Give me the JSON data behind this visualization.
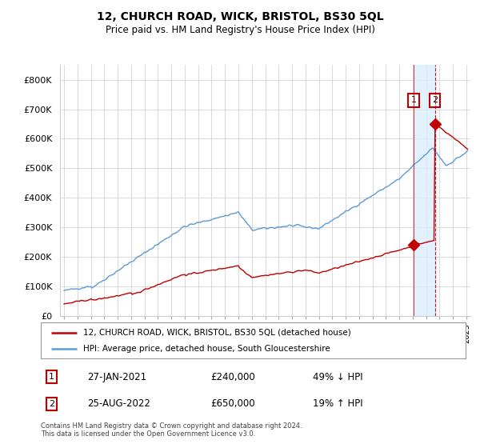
{
  "title": "12, CHURCH ROAD, WICK, BRISTOL, BS30 5QL",
  "subtitle": "Price paid vs. HM Land Registry's House Price Index (HPI)",
  "ylim": [
    0,
    850000
  ],
  "yticks": [
    0,
    100000,
    200000,
    300000,
    400000,
    500000,
    600000,
    700000,
    800000
  ],
  "ytick_labels": [
    "£0",
    "£100K",
    "£200K",
    "£300K",
    "£400K",
    "£500K",
    "£600K",
    "£700K",
    "£800K"
  ],
  "hpi_color": "#5b9bd5",
  "price_color": "#c00000",
  "shade_color": "#ddeeff",
  "grid_color": "#cccccc",
  "legend_label_price": "12, CHURCH ROAD, WICK, BRISTOL, BS30 5QL (detached house)",
  "legend_label_hpi": "HPI: Average price, detached house, South Gloucestershire",
  "transaction1_date": "27-JAN-2021",
  "transaction1_price": "£240,000",
  "transaction1_pct": "49% ↓ HPI",
  "transaction2_date": "25-AUG-2022",
  "transaction2_price": "£650,000",
  "transaction2_pct": "19% ↑ HPI",
  "footnote": "Contains HM Land Registry data © Crown copyright and database right 2024.\nThis data is licensed under the Open Government Licence v3.0.",
  "transaction1_x": 2021.08,
  "transaction1_y": 240000,
  "transaction2_x": 2022.65,
  "transaction2_y": 650000,
  "xlim_left": 1994.7,
  "xlim_right": 2025.3
}
